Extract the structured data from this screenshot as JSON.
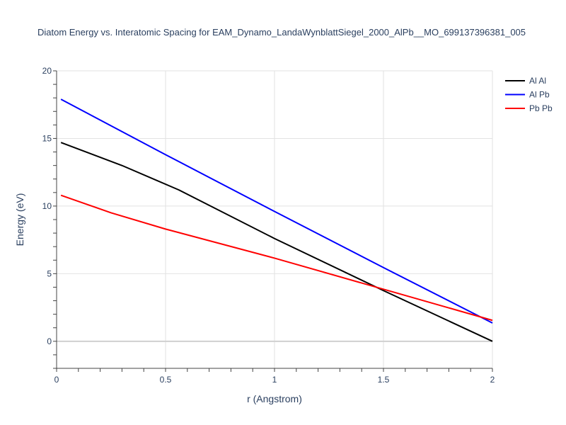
{
  "chart_data": {
    "type": "line",
    "title": "Diatom Energy vs. Interatomic Spacing for EAM_Dynamo_LandaWynblattSiegel_2000_AlPb__MO_699137396381_005",
    "xlabel": "r (Angstrom)",
    "ylabel": "Energy (eV)",
    "xlim": [
      0,
      2
    ],
    "ylim": [
      -2,
      20
    ],
    "x_ticks": [
      0,
      0.5,
      1,
      1.5,
      2
    ],
    "x_tick_labels": [
      "0",
      "0.5",
      "1",
      "1.5",
      "2"
    ],
    "y_ticks": [
      0,
      5,
      10,
      15,
      20
    ],
    "y_tick_labels": [
      "0",
      "5",
      "10",
      "15",
      "20"
    ],
    "grid": true,
    "legend_position": "top-right",
    "series": [
      {
        "name": "Al Al",
        "color": "#000000",
        "x": [
          0.02,
          0.3,
          0.56,
          1.0,
          1.5,
          2.0
        ],
        "y": [
          14.7,
          13.0,
          11.2,
          7.6,
          3.75,
          0.0
        ]
      },
      {
        "name": "Al Pb",
        "color": "#0000ff",
        "x": [
          0.02,
          0.5,
          1.0,
          1.5,
          2.0
        ],
        "y": [
          17.9,
          13.8,
          9.6,
          5.45,
          1.35
        ]
      },
      {
        "name": "Pb Pb",
        "color": "#ff0000",
        "x": [
          0.02,
          0.25,
          0.5,
          1.0,
          1.5,
          2.0
        ],
        "y": [
          10.8,
          9.5,
          8.3,
          6.15,
          3.85,
          1.55
        ]
      }
    ]
  }
}
